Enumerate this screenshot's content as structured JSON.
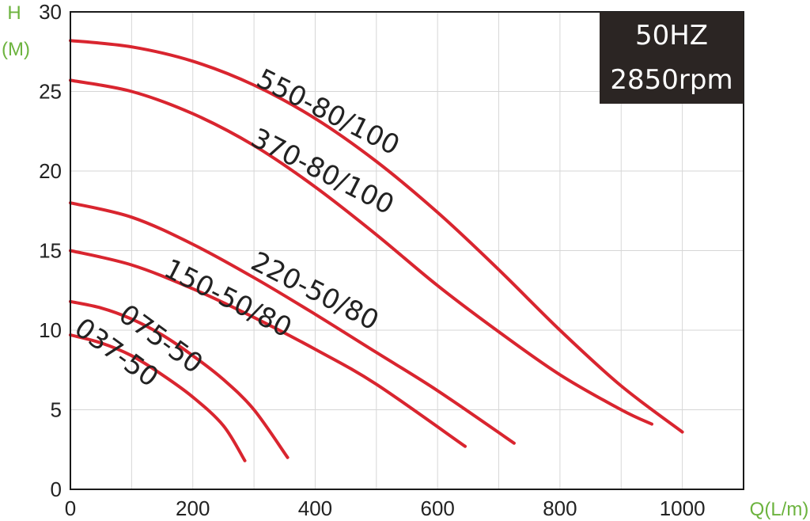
{
  "chart_data": {
    "type": "line",
    "info_box": {
      "line1": "50HZ",
      "line2": "2850rpm"
    },
    "ylabel": {
      "line1": "H",
      "line2": "(M)"
    },
    "xlabel": "Q(L/m)",
    "xlim": [
      0,
      1100
    ],
    "ylim": [
      0,
      30
    ],
    "x_ticks": [
      "0",
      "200",
      "400",
      "600",
      "800",
      "1000"
    ],
    "y_ticks": [
      "0",
      "5",
      "10",
      "15",
      "20",
      "25",
      "30"
    ],
    "grid": true,
    "color": "#d9252f",
    "series": [
      {
        "name": "550-80/100",
        "x": [
          0,
          100,
          200,
          300,
          400,
          500,
          600,
          700,
          800,
          900,
          1000
        ],
        "y": [
          28.2,
          27.8,
          26.9,
          25.4,
          23.3,
          20.6,
          17.4,
          13.8,
          10.0,
          6.5,
          3.6
        ]
      },
      {
        "name": "370-80/100",
        "x": [
          0,
          100,
          200,
          300,
          400,
          500,
          600,
          700,
          800,
          900,
          950
        ],
        "y": [
          25.7,
          25.0,
          23.6,
          21.6,
          19.0,
          16.0,
          12.8,
          9.9,
          7.2,
          5.0,
          4.1
        ]
      },
      {
        "name": "220-50/80",
        "x": [
          0,
          100,
          200,
          300,
          400,
          500,
          600,
          725
        ],
        "y": [
          18.0,
          17.1,
          15.4,
          13.3,
          11.0,
          8.6,
          6.2,
          2.9
        ]
      },
      {
        "name": "150-50/80",
        "x": [
          0,
          100,
          200,
          300,
          400,
          500,
          645
        ],
        "y": [
          15.0,
          14.1,
          12.6,
          10.8,
          8.8,
          6.6,
          2.7
        ]
      },
      {
        "name": "075-50",
        "x": [
          0,
          50,
          100,
          150,
          200,
          250,
          300,
          355
        ],
        "y": [
          11.8,
          11.4,
          10.7,
          9.7,
          8.4,
          6.9,
          5.0,
          2.0
        ]
      },
      {
        "name": "037-50",
        "x": [
          0,
          50,
          100,
          150,
          200,
          250,
          285
        ],
        "y": [
          9.7,
          9.2,
          8.4,
          7.2,
          5.8,
          4.0,
          1.8
        ]
      }
    ]
  }
}
